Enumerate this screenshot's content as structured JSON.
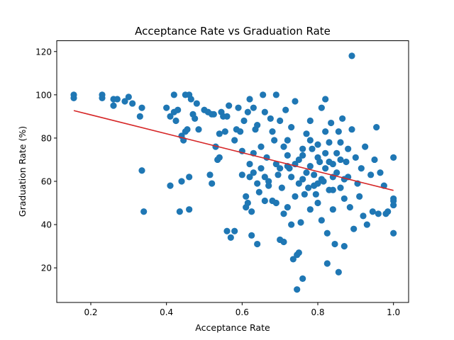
{
  "chart_data": {
    "type": "scatter",
    "title": "Acceptance Rate vs Graduation Rate",
    "xlabel": "Acceptance Rate",
    "ylabel": "Graduation Rate (%)",
    "xlim": [
      0.11,
      1.04
    ],
    "ylim": [
      4,
      125
    ],
    "xticks": [
      "0.2",
      "0.4",
      "0.6",
      "0.8",
      "1.0"
    ],
    "yticks": [
      "20",
      "40",
      "60",
      "80",
      "100",
      "120"
    ],
    "grid": false,
    "point_color": "#1f77b4",
    "trendline": {
      "x": [
        0.155,
        1.0
      ],
      "y": [
        92.7,
        55.8
      ],
      "color": "#d62728"
    },
    "series": [
      {
        "points": [
          [
            0.155,
            100
          ],
          [
            0.155,
            98.5
          ],
          [
            0.23,
            100
          ],
          [
            0.23,
            98.5
          ],
          [
            0.26,
            98
          ],
          [
            0.26,
            95
          ],
          [
            0.27,
            98
          ],
          [
            0.29,
            97
          ],
          [
            0.3,
            99
          ],
          [
            0.31,
            96
          ],
          [
            0.33,
            90
          ],
          [
            0.335,
            94
          ],
          [
            0.335,
            65
          ],
          [
            0.34,
            46
          ],
          [
            0.4,
            94
          ],
          [
            0.41,
            90
          ],
          [
            0.41,
            58
          ],
          [
            0.42,
            100
          ],
          [
            0.42,
            92
          ],
          [
            0.425,
            88
          ],
          [
            0.43,
            93
          ],
          [
            0.435,
            46
          ],
          [
            0.44,
            81
          ],
          [
            0.44,
            60
          ],
          [
            0.445,
            79
          ],
          [
            0.45,
            100
          ],
          [
            0.45,
            83
          ],
          [
            0.455,
            84
          ],
          [
            0.46,
            62
          ],
          [
            0.46,
            100
          ],
          [
            0.465,
            98
          ],
          [
            0.47,
            91
          ],
          [
            0.475,
            89
          ],
          [
            0.48,
            96
          ],
          [
            0.485,
            84
          ],
          [
            0.46,
            47
          ],
          [
            0.5,
            93
          ],
          [
            0.51,
            92
          ],
          [
            0.515,
            63
          ],
          [
            0.52,
            59
          ],
          [
            0.525,
            91
          ],
          [
            0.53,
            76
          ],
          [
            0.535,
            70
          ],
          [
            0.54,
            71
          ],
          [
            0.545,
            92
          ],
          [
            0.55,
            90
          ],
          [
            0.555,
            83
          ],
          [
            0.56,
            37
          ],
          [
            0.565,
            95
          ],
          [
            0.57,
            34
          ],
          [
            0.58,
            37
          ],
          [
            0.585,
            84
          ],
          [
            0.59,
            94
          ],
          [
            0.6,
            63
          ],
          [
            0.6,
            74
          ],
          [
            0.61,
            48
          ],
          [
            0.61,
            53
          ],
          [
            0.615,
            50
          ],
          [
            0.62,
            62
          ],
          [
            0.62,
            98
          ],
          [
            0.625,
            35
          ],
          [
            0.625,
            46
          ],
          [
            0.63,
            94
          ],
          [
            0.63,
            73
          ],
          [
            0.64,
            31
          ],
          [
            0.64,
            86
          ],
          [
            0.645,
            55
          ],
          [
            0.65,
            66
          ],
          [
            0.655,
            100
          ],
          [
            0.66,
            92
          ],
          [
            0.66,
            51
          ],
          [
            0.665,
            71
          ],
          [
            0.67,
            60
          ],
          [
            0.675,
            89
          ],
          [
            0.68,
            51
          ],
          [
            0.685,
            79
          ],
          [
            0.69,
            100
          ],
          [
            0.69,
            50
          ],
          [
            0.695,
            63
          ],
          [
            0.7,
            33
          ],
          [
            0.7,
            88
          ],
          [
            0.705,
            57
          ],
          [
            0.71,
            32
          ],
          [
            0.71,
            45
          ],
          [
            0.715,
            93
          ],
          [
            0.72,
            79
          ],
          [
            0.72,
            48
          ],
          [
            0.725,
            66
          ],
          [
            0.73,
            40
          ],
          [
            0.73,
            85
          ],
          [
            0.735,
            24
          ],
          [
            0.74,
            97
          ],
          [
            0.745,
            26
          ],
          [
            0.75,
            27
          ],
          [
            0.745,
            10
          ],
          [
            0.75,
            59
          ],
          [
            0.755,
            41
          ],
          [
            0.76,
            72
          ],
          [
            0.76,
            15
          ],
          [
            0.765,
            54
          ],
          [
            0.77,
            82
          ],
          [
            0.775,
            57
          ],
          [
            0.78,
            67
          ],
          [
            0.78,
            47
          ],
          [
            0.785,
            75
          ],
          [
            0.79,
            63
          ],
          [
            0.795,
            54
          ],
          [
            0.8,
            77
          ],
          [
            0.8,
            50
          ],
          [
            0.805,
            69
          ],
          [
            0.81,
            42
          ],
          [
            0.81,
            94
          ],
          [
            0.815,
            60
          ],
          [
            0.82,
            98
          ],
          [
            0.82,
            73
          ],
          [
            0.825,
            22
          ],
          [
            0.825,
            36
          ],
          [
            0.83,
            56
          ],
          [
            0.83,
            78
          ],
          [
            0.835,
            87
          ],
          [
            0.84,
            68
          ],
          [
            0.84,
            47
          ],
          [
            0.845,
            31
          ],
          [
            0.85,
            64
          ],
          [
            0.855,
            18
          ],
          [
            0.855,
            83
          ],
          [
            0.86,
            57
          ],
          [
            0.865,
            89
          ],
          [
            0.87,
            30
          ],
          [
            0.87,
            52
          ],
          [
            0.875,
            69
          ],
          [
            0.88,
            62
          ],
          [
            0.885,
            48
          ],
          [
            0.89,
            84
          ],
          [
            0.89,
            118
          ],
          [
            0.895,
            38
          ],
          [
            0.9,
            71
          ],
          [
            0.905,
            59
          ],
          [
            0.91,
            53
          ],
          [
            0.915,
            66
          ],
          [
            0.92,
            44
          ],
          [
            0.925,
            76
          ],
          [
            0.93,
            40
          ],
          [
            0.94,
            63
          ],
          [
            0.945,
            46
          ],
          [
            0.95,
            70
          ],
          [
            0.955,
            85
          ],
          [
            0.96,
            45
          ],
          [
            0.965,
            64
          ],
          [
            0.975,
            58
          ],
          [
            0.98,
            45
          ],
          [
            0.985,
            46
          ],
          [
            1.0,
            52
          ],
          [
            1.0,
            71
          ],
          [
            1.0,
            49
          ],
          [
            1.0,
            36
          ],
          [
            1.0,
            51
          ],
          [
            0.66,
            62
          ],
          [
            0.72,
            72
          ],
          [
            0.74,
            68
          ],
          [
            0.76,
            75
          ],
          [
            0.78,
            79
          ],
          [
            0.8,
            71
          ],
          [
            0.82,
            66
          ],
          [
            0.84,
            62
          ],
          [
            0.86,
            70
          ],
          [
            0.88,
            75
          ],
          [
            0.79,
            58
          ],
          [
            0.81,
            61
          ],
          [
            0.83,
            69
          ],
          [
            0.85,
            73
          ],
          [
            0.87,
            61
          ],
          [
            0.77,
            64
          ],
          [
            0.75,
            70
          ],
          [
            0.73,
            62
          ],
          [
            0.71,
            76
          ],
          [
            0.69,
            68
          ],
          [
            0.67,
            58
          ],
          [
            0.65,
            76
          ],
          [
            0.63,
            64
          ],
          [
            0.68,
            83
          ],
          [
            0.7,
            66
          ],
          [
            0.74,
            53
          ],
          [
            0.78,
            88
          ],
          [
            0.82,
            83
          ],
          [
            0.86,
            78
          ],
          [
            0.84,
            56
          ],
          [
            0.8,
            59
          ],
          [
            0.76,
            61
          ],
          [
            0.72,
            67
          ],
          [
            0.62,
            68
          ],
          [
            0.64,
            59
          ],
          [
            0.58,
            79
          ],
          [
            0.56,
            90
          ],
          [
            0.54,
            82
          ],
          [
            0.52,
            91
          ],
          [
            0.605,
            88
          ],
          [
            0.595,
            83
          ],
          [
            0.615,
            92
          ],
          [
            0.635,
            84
          ]
        ]
      }
    ]
  }
}
